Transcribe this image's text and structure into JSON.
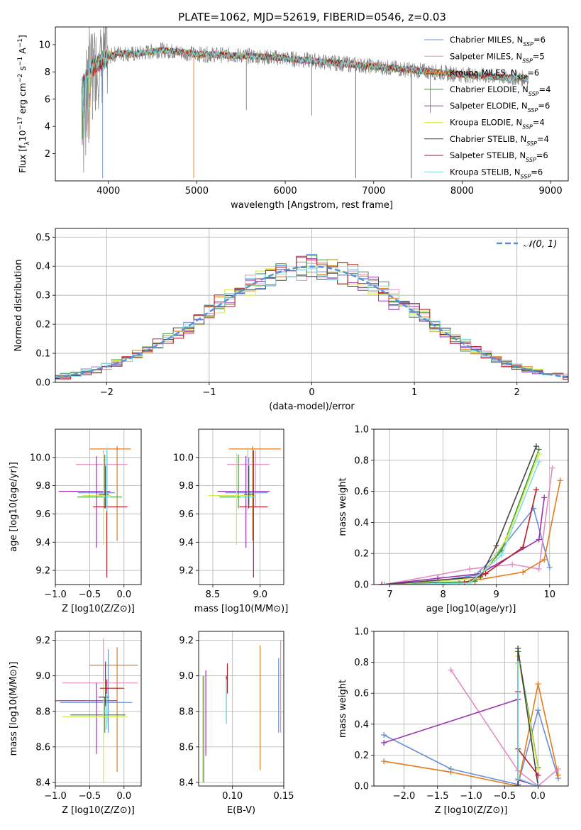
{
  "figure": {
    "title": "PLATE=1062, MJD=52619, FIBERID=0546, z=0.03"
  },
  "colors": {
    "models": [
      "#6b8fd6",
      "#e58cc5",
      "#e47c1e",
      "#3a9a3a",
      "#9b34b4",
      "#d9e84a",
      "#444444",
      "#b3202a",
      "#7fdde0"
    ],
    "data": "#808080",
    "gaussian": "#5b8fd6",
    "grid": "#b0b0b0"
  },
  "models": [
    {
      "label": "Chabrier MILES, N",
      "sub": "SSP",
      "nssp": "=6"
    },
    {
      "label": "Salpeter MILES, N",
      "sub": "SSP",
      "nssp": "=5"
    },
    {
      "label": "Kroupa MILES, N",
      "sub": "SSP",
      "nssp": "=6"
    },
    {
      "label": "Chabrier ELODIE, N",
      "sub": "SSP",
      "nssp": "=4"
    },
    {
      "label": "Salpeter ELODIE, N",
      "sub": "SSP",
      "nssp": "=6"
    },
    {
      "label": "Kroupa ELODIE, N",
      "sub": "SSP",
      "nssp": "=4"
    },
    {
      "label": "Chabrier STELIB, N",
      "sub": "SSP",
      "nssp": "=4"
    },
    {
      "label": "Salpeter STELIB, N",
      "sub": "SSP",
      "nssp": "=6"
    },
    {
      "label": "Kroupa STELIB, N",
      "sub": "SSP",
      "nssp": "=6"
    }
  ],
  "chart_data": [
    {
      "id": "spectrum",
      "type": "line",
      "xlabel": "wavelength [Angstrom, rest frame]",
      "ylabel_parts": [
        "Flux [f",
        "λ",
        "10",
        "−17",
        " erg cm",
        "−2",
        " s",
        "−1",
        " A",
        "−1",
        "]"
      ],
      "xlim": [
        3400,
        9200
      ],
      "ylim": [
        0,
        11.3
      ],
      "xticks": [
        4000,
        5000,
        6000,
        7000,
        8000,
        9000
      ],
      "yticks": [
        2,
        4,
        6,
        8,
        10
      ],
      "x_range_data": [
        3700,
        8750
      ],
      "continuum": [
        {
          "x": 3700,
          "y": 7.0
        },
        {
          "x": 3800,
          "y": 8.3
        },
        {
          "x": 3950,
          "y": 8.9
        },
        {
          "x": 4100,
          "y": 9.4
        },
        {
          "x": 4300,
          "y": 9.3
        },
        {
          "x": 4600,
          "y": 9.6
        },
        {
          "x": 5000,
          "y": 9.3
        },
        {
          "x": 5500,
          "y": 9.2
        },
        {
          "x": 6000,
          "y": 9.0
        },
        {
          "x": 6500,
          "y": 8.7
        },
        {
          "x": 7000,
          "y": 8.4
        },
        {
          "x": 7500,
          "y": 8.1
        },
        {
          "x": 8000,
          "y": 7.8
        },
        {
          "x": 8750,
          "y": 7.5
        }
      ],
      "drops": [
        {
          "x": 3935,
          "y": 0.2
        },
        {
          "x": 4965,
          "y": 0.2
        },
        {
          "x": 6797,
          "y": 0.2
        },
        {
          "x": 7425,
          "y": 0.2
        },
        {
          "x": 5560,
          "y": 5.2
        },
        {
          "x": 6300,
          "y": 4.8
        },
        {
          "x": 7640,
          "y": 5.0
        },
        {
          "x": 3820,
          "y": 4.5
        }
      ],
      "legend": "upper-right"
    },
    {
      "id": "residuals",
      "type": "histogram",
      "xlabel": "(data-model)/error",
      "ylabel": "Normed distribution",
      "xlim": [
        -2.5,
        2.5
      ],
      "ylim": [
        0,
        0.53
      ],
      "xticks": [
        -2,
        -1,
        0,
        1,
        2
      ],
      "yticks": [
        0.0,
        0.1,
        0.2,
        0.3,
        0.4,
        0.5
      ],
      "bin_width": 0.1,
      "gaussian_label": "𝒩(0, 1)",
      "legend": "upper-right",
      "grid": true
    },
    {
      "id": "age-vs-z",
      "type": "errorbar",
      "xlabel": "Z [log10(Z/Z⊙)]",
      "ylabel": "age  [log10(age/yr)]",
      "xlim": [
        -1.0,
        0.25
      ],
      "ylim": [
        9.1,
        10.2
      ],
      "xticks": [
        -1.0,
        -0.5,
        0.0
      ],
      "yticks": [
        9.2,
        9.4,
        9.6,
        9.8,
        10.0
      ],
      "points": [
        {
          "x": -0.25,
          "y": 9.75,
          "xerr": [
            0.42,
            0.12
          ],
          "yerr": [
            0.08,
            0.25
          ]
        },
        {
          "x": -0.3,
          "y": 9.95,
          "xerr": [
            0.4,
            0.35
          ],
          "yerr": [
            0.3,
            0.1
          ]
        },
        {
          "x": -0.1,
          "y": 10.06,
          "xerr": [
            0.4,
            0.2
          ],
          "yerr": [
            0.65,
            0.02
          ]
        },
        {
          "x": -0.28,
          "y": 9.72,
          "xerr": [
            0.4,
            0.25
          ],
          "yerr": [
            0.08,
            0.3
          ]
        },
        {
          "x": -0.4,
          "y": 9.76,
          "xerr": [
            0.55,
            0.2
          ],
          "yerr": [
            0.4,
            0.25
          ]
        },
        {
          "x": -0.3,
          "y": 9.73,
          "xerr": [
            0.3,
            0.1
          ],
          "yerr": [
            0.35,
            0.3
          ]
        },
        {
          "x": -0.27,
          "y": 9.74,
          "xerr": [
            0.1,
            0.05
          ],
          "yerr": [
            0.1,
            0.2
          ]
        },
        {
          "x": -0.25,
          "y": 9.65,
          "xerr": [
            0.2,
            0.3
          ],
          "yerr": [
            0.5,
            0.4
          ]
        },
        {
          "x": -0.25,
          "y": 9.72,
          "xerr": [
            0.06,
            0.05
          ],
          "yerr": [
            0.1,
            0.35
          ]
        }
      ]
    },
    {
      "id": "age-vs-mass",
      "type": "errorbar",
      "xlabel": "mass [log10(M/M⊙)]",
      "ylabel": "",
      "xlim": [
        8.35,
        9.25
      ],
      "ylim": [
        9.1,
        10.2
      ],
      "xticks": [
        8.5,
        9.0
      ],
      "yticks": [
        9.2,
        9.4,
        9.6,
        9.8,
        10.0
      ],
      "points": [
        {
          "x": 8.88,
          "y": 9.75,
          "xerr": [
            0.25,
            0.2
          ],
          "yerr": [
            0.08,
            0.25
          ]
        },
        {
          "x": 8.95,
          "y": 9.95,
          "xerr": [
            0.3,
            0.15
          ],
          "yerr": [
            0.3,
            0.1
          ]
        },
        {
          "x": 8.92,
          "y": 10.06,
          "xerr": [
            0.25,
            0.3
          ],
          "yerr": [
            0.65,
            0.02
          ]
        },
        {
          "x": 8.77,
          "y": 9.72,
          "xerr": [
            0.2,
            0.18
          ],
          "yerr": [
            0.08,
            0.3
          ]
        },
        {
          "x": 8.85,
          "y": 9.76,
          "xerr": [
            0.3,
            0.25
          ],
          "yerr": [
            0.4,
            0.25
          ]
        },
        {
          "x": 8.75,
          "y": 9.73,
          "xerr": [
            0.3,
            0.2
          ],
          "yerr": [
            0.35,
            0.3
          ]
        },
        {
          "x": 8.88,
          "y": 9.74,
          "xerr": [
            0.05,
            0.05
          ],
          "yerr": [
            0.1,
            0.2
          ]
        },
        {
          "x": 8.93,
          "y": 9.65,
          "xerr": [
            0.15,
            0.15
          ],
          "yerr": [
            0.5,
            0.4
          ]
        },
        {
          "x": 8.87,
          "y": 9.72,
          "xerr": [
            0.08,
            0.08
          ],
          "yerr": [
            0.1,
            0.35
          ]
        }
      ]
    },
    {
      "id": "weight-vs-age",
      "type": "line",
      "xlabel": "age  [log10(age/yr)]",
      "ylabel": "mass weight",
      "xlim": [
        6.7,
        10.35
      ],
      "ylim": [
        0,
        1.0
      ],
      "xticks": [
        7,
        8,
        9,
        10
      ],
      "yticks": [
        0.0,
        0.2,
        0.4,
        0.6,
        0.8,
        1.0
      ],
      "grid": true,
      "series": [
        {
          "values": [
            [
              6.85,
              0.0
            ],
            [
              7.7,
              0.01
            ],
            [
              8.6,
              0.06
            ],
            [
              9.0,
              0.19
            ],
            [
              9.7,
              0.49
            ],
            [
              10.0,
              0.11
            ]
          ]
        },
        {
          "values": [
            [
              6.9,
              0.0
            ],
            [
              8.5,
              0.1
            ],
            [
              9.3,
              0.13
            ],
            [
              9.8,
              0.1
            ],
            [
              10.05,
              0.75
            ]
          ]
        },
        {
          "values": [
            [
              6.85,
              0.0
            ],
            [
              8.3,
              0.01
            ],
            [
              9.5,
              0.08
            ],
            [
              9.9,
              0.16
            ],
            [
              10.2,
              0.67
            ]
          ]
        },
        {
          "values": [
            [
              6.85,
              0.0
            ],
            [
              8.6,
              0.02
            ],
            [
              9.1,
              0.22
            ],
            [
              9.8,
              0.87
            ]
          ]
        },
        {
          "values": [
            [
              6.85,
              0.0
            ],
            [
              7.9,
              0.04
            ],
            [
              8.7,
              0.07
            ],
            [
              9.8,
              0.29
            ],
            [
              9.9,
              0.56
            ]
          ]
        },
        {
          "values": [
            [
              6.9,
              0.0
            ],
            [
              8.7,
              0.04
            ],
            [
              9.2,
              0.3
            ],
            [
              9.8,
              0.84
            ]
          ]
        },
        {
          "values": [
            [
              6.9,
              0.0
            ],
            [
              8.7,
              0.05
            ],
            [
              9.0,
              0.25
            ],
            [
              9.75,
              0.89
            ]
          ]
        },
        {
          "values": [
            [
              6.85,
              0.0
            ],
            [
              8.4,
              0.01
            ],
            [
              8.8,
              0.07
            ],
            [
              9.5,
              0.24
            ],
            [
              9.75,
              0.61
            ]
          ]
        },
        {
          "values": [
            [
              6.9,
              0.0
            ],
            [
              8.5,
              0.01
            ],
            [
              9.1,
              0.19
            ],
            [
              9.8,
              0.79
            ]
          ]
        }
      ]
    },
    {
      "id": "mass-vs-z",
      "type": "errorbar",
      "xlabel": "Z [log10(Z/Z⊙)]",
      "ylabel": "mass [log10(M/M⊙)]",
      "xlim": [
        -1.0,
        0.25
      ],
      "ylim": [
        8.38,
        9.25
      ],
      "xticks": [
        -1.0,
        -0.5,
        0.0
      ],
      "yticks": [
        8.4,
        8.6,
        8.8,
        9.0,
        9.2
      ],
      "points": [
        {
          "x": -0.23,
          "y": 8.85,
          "xerr": [
            0.7,
            0.35
          ],
          "yerr": [
            0.17,
            0.3
          ]
        },
        {
          "x": -0.3,
          "y": 8.96,
          "xerr": [
            0.6,
            0.5
          ],
          "yerr": [
            0.2,
            0.25
          ]
        },
        {
          "x": -0.1,
          "y": 9.06,
          "xerr": [
            0.4,
            0.3
          ],
          "yerr": [
            0.6,
            0.1
          ]
        },
        {
          "x": -0.28,
          "y": 8.78,
          "xerr": [
            0.5,
            0.3
          ],
          "yerr": [
            0.1,
            0.1
          ]
        },
        {
          "x": -0.4,
          "y": 8.86,
          "xerr": [
            0.6,
            0.3
          ],
          "yerr": [
            0.3,
            0.1
          ]
        },
        {
          "x": -0.3,
          "y": 8.77,
          "xerr": [
            0.6,
            0.35
          ],
          "yerr": [
            0.37,
            0.2
          ]
        },
        {
          "x": -0.27,
          "y": 8.88,
          "xerr": [
            0.1,
            0.05
          ],
          "yerr": [
            0.05,
            0.2
          ]
        },
        {
          "x": -0.25,
          "y": 8.93,
          "xerr": [
            0.1,
            0.25
          ],
          "yerr": [
            0.2,
            0.05
          ]
        },
        {
          "x": -0.25,
          "y": 8.8,
          "xerr": [
            0.05,
            0.05
          ],
          "yerr": [
            0.1,
            0.1
          ]
        }
      ]
    },
    {
      "id": "mass-vs-ebv",
      "type": "errorbar",
      "xlabel": "E(B-V)",
      "ylabel": "",
      "xlim": [
        0.067,
        0.15
      ],
      "ylim": [
        8.38,
        9.25
      ],
      "xticks": [
        0.1,
        0.15
      ],
      "yticks": [
        8.4,
        8.6,
        8.8,
        9.0,
        9.2
      ],
      "points": [
        {
          "x": 0.145,
          "y": 8.9,
          "xerr": [
            0,
            0
          ],
          "yerr": [
            0.22,
            0.2
          ]
        },
        {
          "x": 0.147,
          "y": 8.9,
          "xerr": [
            0,
            0
          ],
          "yerr": [
            0.22,
            0.3
          ]
        },
        {
          "x": 0.127,
          "y": 8.8,
          "xerr": [
            0,
            0
          ],
          "yerr": [
            0.33,
            0.37
          ]
        },
        {
          "x": 0.072,
          "y": 8.7,
          "xerr": [
            0,
            0
          ],
          "yerr": [
            0.3,
            0.3
          ]
        },
        {
          "x": 0.074,
          "y": 8.8,
          "xerr": [
            0,
            0
          ],
          "yerr": [
            0.25,
            0.23
          ]
        },
        {
          "x": 0.071,
          "y": 8.7,
          "xerr": [
            0,
            0
          ],
          "yerr": [
            0.3,
            0.3
          ]
        },
        {
          "x": 0.094,
          "y": 8.85,
          "xerr": [
            0,
            0
          ],
          "yerr": [
            0.12,
            0.15
          ]
        },
        {
          "x": 0.095,
          "y": 8.95,
          "xerr": [
            0,
            0
          ],
          "yerr": [
            0.05,
            0.12
          ]
        },
        {
          "x": 0.094,
          "y": 8.85,
          "xerr": [
            0,
            0
          ],
          "yerr": [
            0.12,
            0.13
          ]
        }
      ]
    },
    {
      "id": "weight-vs-z",
      "type": "line",
      "xlabel": "Z [log10(Z/Z⊙)]",
      "ylabel": "mass weight",
      "xlim": [
        -2.45,
        0.45
      ],
      "ylim": [
        0,
        1.0
      ],
      "xticks": [
        -2.0,
        -1.5,
        -1.0,
        -0.5,
        0.0
      ],
      "yticks": [
        0.0,
        0.2,
        0.4,
        0.6,
        0.8,
        1.0
      ],
      "grid": true,
      "series": [
        {
          "values": [
            [
              -2.3,
              0.33
            ],
            [
              -1.3,
              0.11
            ],
            [
              -0.3,
              0.01
            ],
            [
              0.0,
              0.49
            ],
            [
              0.3,
              0.05
            ]
          ]
        },
        {
          "values": [
            [
              -1.3,
              0.75
            ],
            [
              -0.3,
              0.1
            ],
            [
              0.0,
              0.0
            ],
            [
              0.3,
              0.11
            ]
          ]
        },
        {
          "values": [
            [
              -2.3,
              0.16
            ],
            [
              -1.3,
              0.09
            ],
            [
              -0.3,
              0.0
            ],
            [
              0.0,
              0.66
            ],
            [
              0.3,
              0.07
            ]
          ]
        },
        {
          "values": [
            [
              -0.3,
              0.0
            ],
            [
              -0.3,
              0.87
            ],
            [
              0.0,
              0.12
            ]
          ]
        },
        {
          "values": [
            [
              -2.3,
              0.28
            ],
            [
              -0.3,
              0.56
            ],
            [
              -0.3,
              0.04
            ],
            [
              0.0,
              0.0
            ]
          ]
        },
        {
          "values": [
            [
              -0.3,
              0.0
            ],
            [
              -0.3,
              0.84
            ],
            [
              0.0,
              0.11
            ]
          ]
        },
        {
          "values": [
            [
              -0.3,
              0.0
            ],
            [
              -0.3,
              0.89
            ],
            [
              0.0,
              0.0
            ]
          ]
        },
        {
          "values": [
            [
              -0.3,
              0.61
            ],
            [
              -0.3,
              0.24
            ],
            [
              0.0,
              0.07
            ]
          ]
        },
        {
          "values": [
            [
              -0.3,
              0.79
            ],
            [
              -0.3,
              0.05
            ],
            [
              0.0,
              0.0
            ]
          ]
        }
      ]
    }
  ]
}
